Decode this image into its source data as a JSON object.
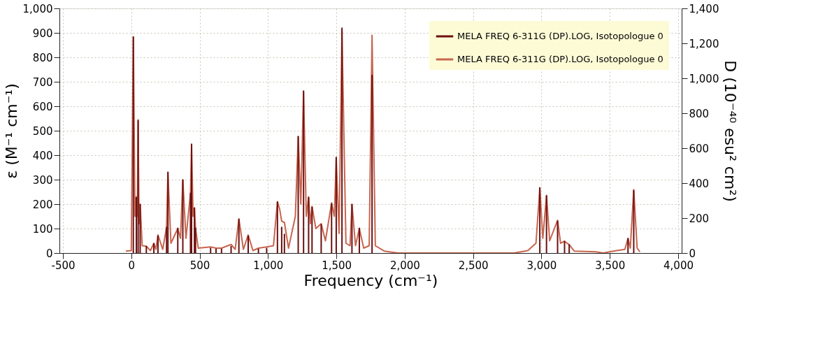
{
  "chart_data": {
    "type": "line",
    "xlabel": "Frequency (cm⁻¹)",
    "ylabel": "ε (M⁻¹ cm⁻¹)",
    "y2label": "D (10⁻⁴⁰ esu² cm²)",
    "xlim": [
      -500,
      4000
    ],
    "xticks": [
      -500,
      0,
      500,
      {
        "value": 1000,
        "label": "1,000"
      },
      {
        "value": 1500,
        "label": "1,500"
      },
      {
        "value": 2000,
        "label": "2,000"
      },
      {
        "value": 2500,
        "label": "2,500"
      },
      {
        "value": 3000,
        "label": "3,000"
      },
      {
        "value": 3500,
        "label": "3,500"
      },
      {
        "value": 4000,
        "label": "4,000"
      }
    ],
    "ylim": [
      0,
      1000
    ],
    "yticks": [
      0,
      100,
      200,
      300,
      400,
      500,
      600,
      700,
      800,
      900,
      {
        "value": 1000,
        "label": "1,000"
      }
    ],
    "y2lim": [
      0,
      1400
    ],
    "y2ticks": [
      0,
      200,
      400,
      600,
      800,
      {
        "value": 1000,
        "label": "1,000"
      },
      {
        "value": 1200,
        "label": "1,200"
      },
      {
        "value": 1400,
        "label": "1,400"
      }
    ],
    "grid": true,
    "legend": "top right",
    "series": [
      {
        "name": "MELA FREQ 6-311G (DP).LOG, Isotopologue 0",
        "color": "#6b1010",
        "type": "bar",
        "axis": "y2",
        "x": [
          15,
          37,
          50,
          65,
          110,
          165,
          195,
          258,
          268,
          340,
          377,
          433,
          441,
          462,
          470,
          580,
          620,
          660,
          730,
          787,
          855,
          930,
          990,
          1069,
          1100,
          1120,
          1221,
          1260,
          1297,
          1322,
          1389,
          1465,
          1499,
          1541,
          1614,
          1668,
          1761,
          2988,
          3037,
          3118,
          3169,
          3203,
          3633,
          3675
        ],
        "values": [
          1240,
          320,
          760,
          280,
          40,
          56,
          100,
          150,
          465,
          145,
          420,
          345,
          625,
          260,
          145,
          30,
          25,
          25,
          40,
          195,
          100,
          25,
          30,
          295,
          150,
          110,
          670,
          930,
          320,
          265,
          165,
          285,
          550,
          1290,
          280,
          145,
          1020,
          375,
          330,
          185,
          70,
          50,
          85,
          360
        ]
      },
      {
        "name": "MELA FREQ 6-311G (DP).LOG, Isotopologue 0",
        "color": "#c8654f",
        "x": [
          -40,
          0,
          15,
          27,
          37,
          44,
          50,
          57,
          65,
          80,
          110,
          140,
          165,
          180,
          195,
          230,
          258,
          268,
          290,
          340,
          360,
          377,
          400,
          433,
          441,
          452,
          462,
          470,
          490,
          580,
          620,
          660,
          730,
          760,
          787,
          820,
          855,
          890,
          930,
          990,
          1040,
          1069,
          1085,
          1100,
          1120,
          1150,
          1200,
          1221,
          1240,
          1260,
          1280,
          1297,
          1310,
          1322,
          1350,
          1389,
          1420,
          1465,
          1485,
          1499,
          1520,
          1541,
          1570,
          1600,
          1614,
          1640,
          1668,
          1700,
          1740,
          1761,
          1785,
          1850,
          1950,
          2800,
          2900,
          2960,
          2988,
          3010,
          3037,
          3060,
          3118,
          3140,
          3169,
          3203,
          3240,
          3400,
          3450,
          3550,
          3610,
          3633,
          3650,
          3675,
          3700,
          3720
        ],
        "values": [
          8,
          10,
          880,
          150,
          230,
          150,
          545,
          120,
          200,
          30,
          28,
          10,
          40,
          15,
          74,
          15,
          105,
          330,
          40,
          100,
          60,
          300,
          60,
          245,
          445,
          150,
          185,
          100,
          20,
          25,
          20,
          20,
          35,
          15,
          140,
          15,
          74,
          10,
          20,
          25,
          30,
          210,
          180,
          130,
          125,
          20,
          150,
          475,
          200,
          660,
          150,
          230,
          120,
          190,
          100,
          120,
          50,
          205,
          150,
          390,
          80,
          910,
          40,
          30,
          200,
          30,
          100,
          20,
          30,
          890,
          30,
          8,
          0,
          0,
          10,
          40,
          267,
          60,
          236,
          50,
          134,
          40,
          48,
          34,
          8,
          5,
          0,
          10,
          15,
          60,
          20,
          259,
          20,
          5
        ]
      }
    ]
  }
}
